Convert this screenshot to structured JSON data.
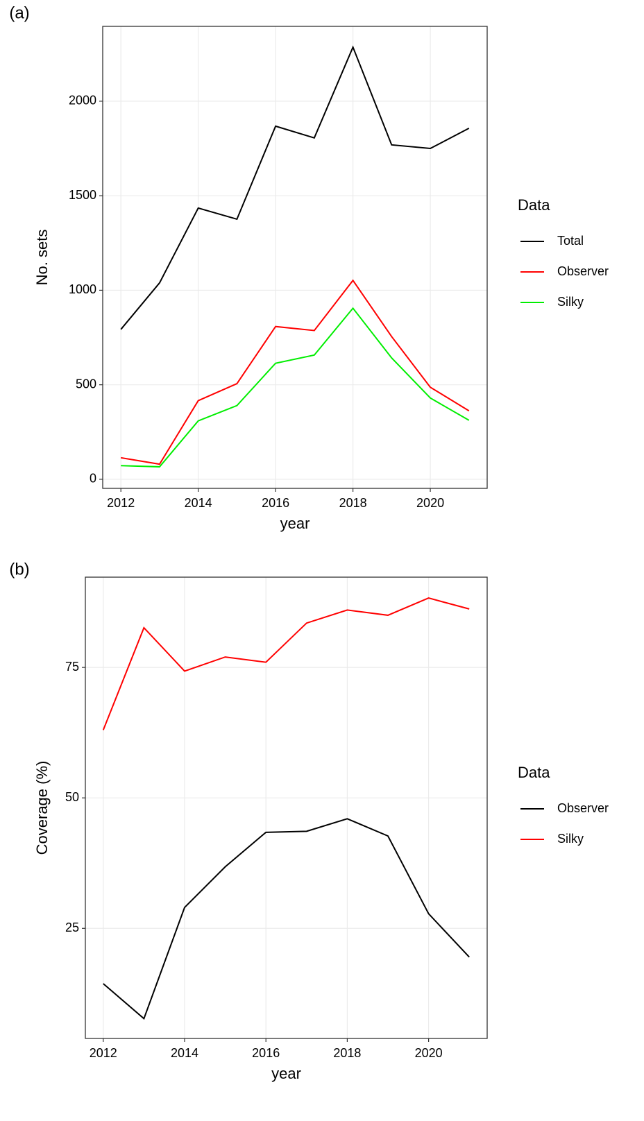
{
  "chart_data": [
    {
      "type": "line",
      "panel_label": "(a)",
      "x_label": "year",
      "y_label": "No. sets",
      "legend_title": "Data",
      "x": [
        2012,
        2013,
        2014,
        2015,
        2016,
        2017,
        2018,
        2019,
        2020,
        2021
      ],
      "series": [
        {
          "name": "Total",
          "color": "#000000",
          "values": [
            793,
            1039,
            1435,
            1376,
            1868,
            1806,
            2286,
            1769,
            1750,
            1857
          ]
        },
        {
          "name": "Observer",
          "color": "#ff0000",
          "values": [
            114,
            80,
            416,
            506,
            808,
            787,
            1052,
            755,
            487,
            362
          ]
        },
        {
          "name": "Silky",
          "color": "#00ee00",
          "values": [
            72,
            66,
            309,
            390,
            614,
            657,
            905,
            642,
            430,
            312
          ]
        }
      ],
      "xlim": [
        2011.53,
        2021.47
      ],
      "xticks": [
        2012,
        2014,
        2016,
        2018,
        2020
      ],
      "ylim": [
        -48,
        2396
      ],
      "yticks": [
        0,
        500,
        1000,
        1500,
        2000
      ],
      "grid": true
    },
    {
      "type": "line",
      "panel_label": "(b)",
      "x_label": "year",
      "y_label": "Coverage (%)",
      "legend_title": "Data",
      "x": [
        2012,
        2013,
        2014,
        2015,
        2016,
        2017,
        2018,
        2019,
        2020,
        2021
      ],
      "series": [
        {
          "name": "Observer",
          "color": "#000000",
          "values": [
            14.4,
            7.7,
            29.0,
            36.8,
            43.4,
            43.6,
            46.0,
            42.7,
            27.8,
            19.5
          ]
        },
        {
          "name": "Silky",
          "color": "#ff0000",
          "values": [
            63.0,
            82.6,
            74.3,
            77.0,
            76.0,
            83.5,
            86.0,
            85.0,
            88.3,
            86.2
          ]
        }
      ],
      "xlim": [
        2011.56,
        2021.44
      ],
      "xticks": [
        2012,
        2014,
        2016,
        2018,
        2020
      ],
      "ylim": [
        3.9,
        92.3
      ],
      "yticks": [
        25,
        50,
        75
      ],
      "grid": true
    }
  ]
}
